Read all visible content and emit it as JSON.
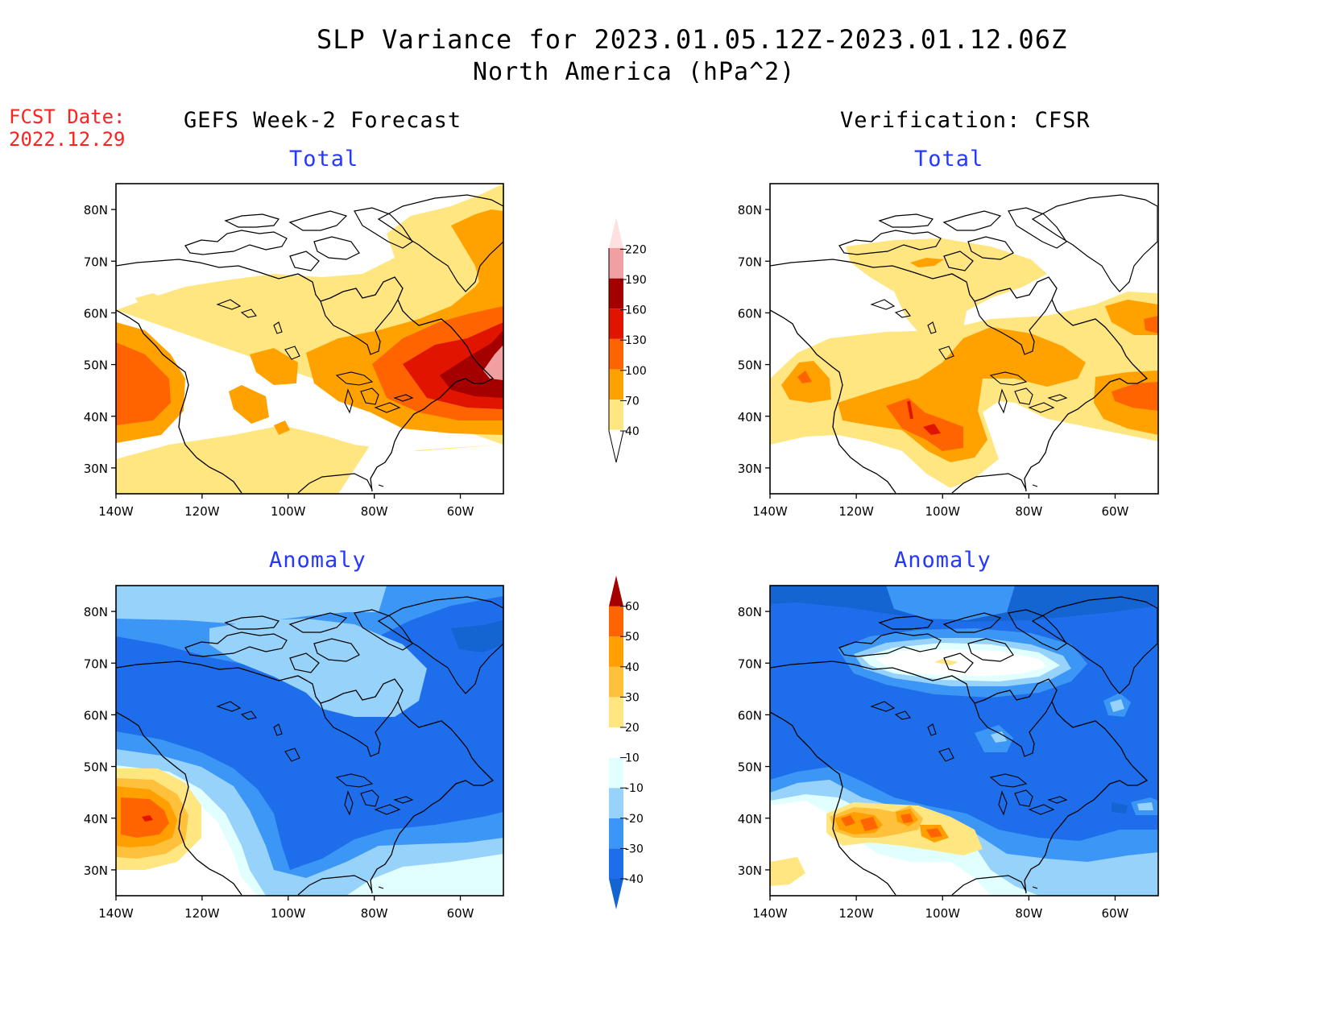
{
  "header": {
    "title": "SLP Variance for 2023.01.05.12Z-2023.01.12.06Z",
    "subtitle": "North America (hPa^2)",
    "fcst_label": "FCST Date:",
    "fcst_date": "2022.12.29",
    "left_column": "GEFS Week-2 Forecast",
    "right_column": "Verification: CFSR"
  },
  "panels": [
    {
      "id": "forecast-total",
      "title": "Total",
      "field": "total"
    },
    {
      "id": "verification-total",
      "title": "Total",
      "field": "total"
    },
    {
      "id": "forecast-anomaly",
      "title": "Anomaly",
      "field": "anomaly"
    },
    {
      "id": "verification-anomaly",
      "title": "Anomaly",
      "field": "anomaly"
    }
  ],
  "axes": {
    "lon_ticks": [
      "140W",
      "120W",
      "100W",
      "80W",
      "60W"
    ],
    "lat_ticks": [
      "80N",
      "70N",
      "60N",
      "50N",
      "40N",
      "30N"
    ],
    "lon_range": [
      -140,
      -50
    ],
    "lat_range": [
      25,
      85
    ]
  },
  "colorbars": {
    "total": {
      "levels": [
        "40",
        "70",
        "100",
        "130",
        "160",
        "190",
        "220"
      ],
      "colors": [
        "#ffe680",
        "#ffa200",
        "#ff6400",
        "#e11400",
        "#a50000",
        "#f0a0a0",
        "#ffe0e0"
      ]
    },
    "anomaly": {
      "levels": [
        "-40",
        "-30",
        "-20",
        "-10",
        "10",
        "20",
        "30",
        "40",
        "50",
        "60"
      ],
      "colors": [
        "#1464d2",
        "#1e6eeb",
        "#3c96f5",
        "#96d2fa",
        "#e1ffff",
        "#ffffff",
        "#ffe680",
        "#ffc03c",
        "#ffa000",
        "#ff6400",
        "#e11400",
        "#a50000"
      ]
    }
  }
}
